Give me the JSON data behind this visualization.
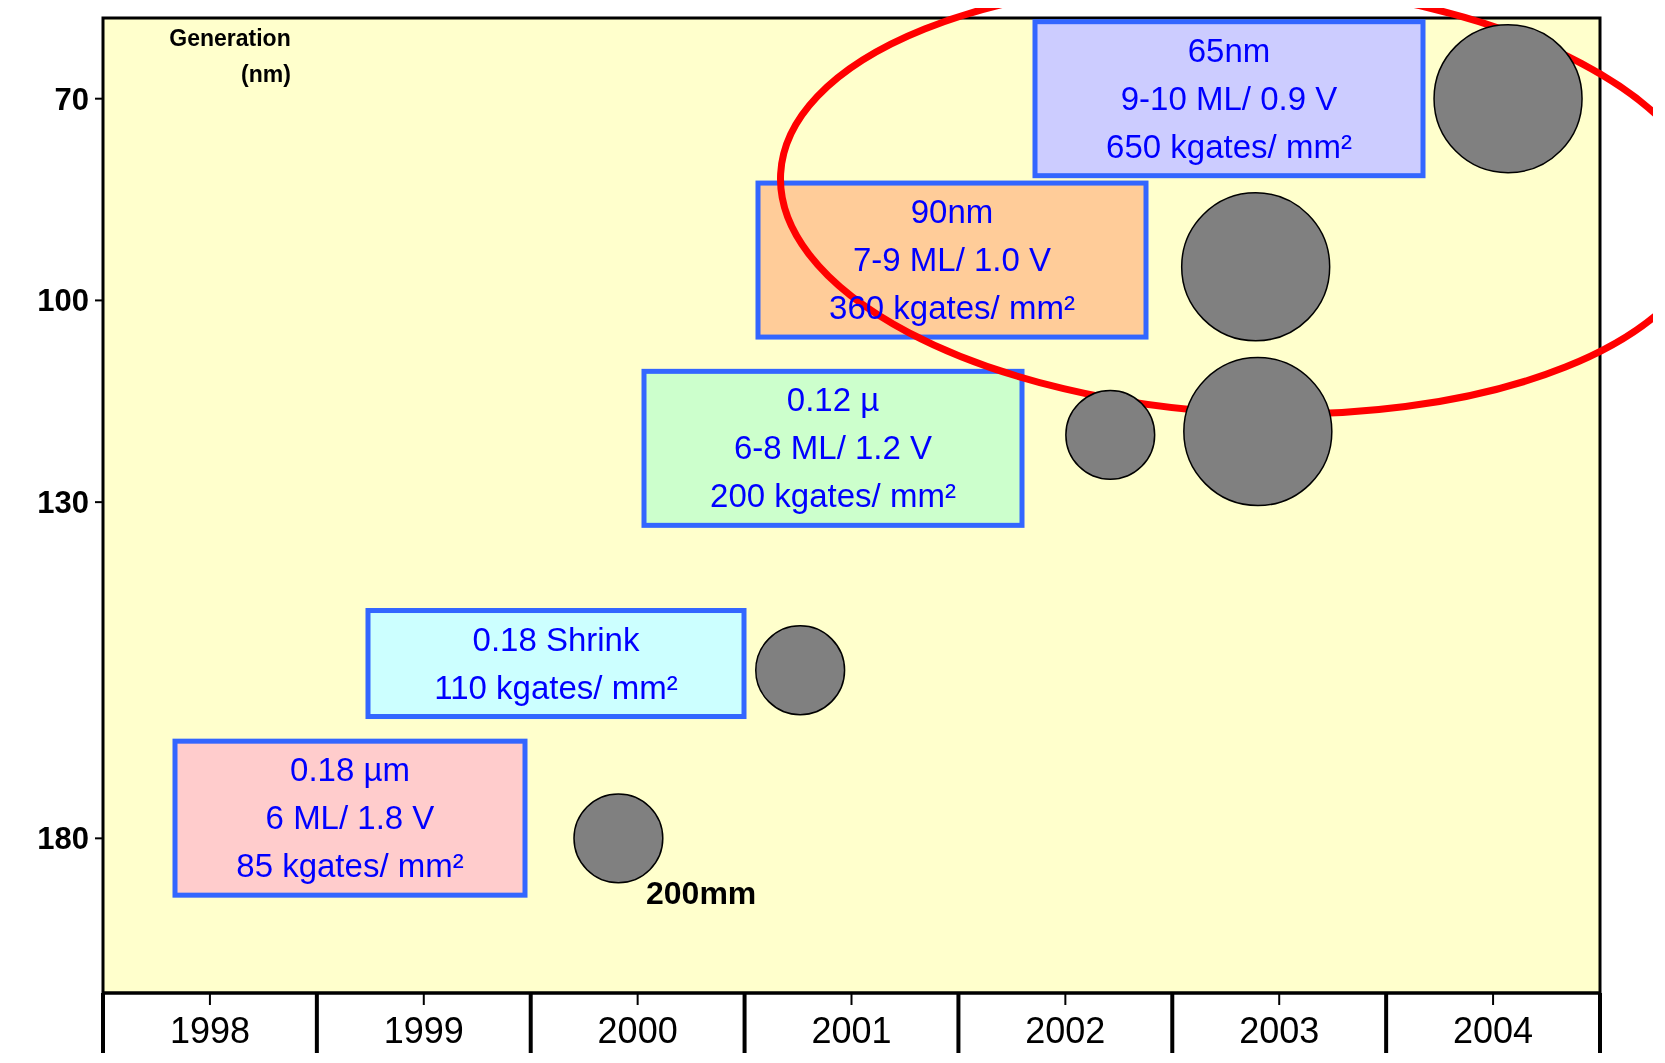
{
  "chart_data": {
    "type": "bubble",
    "ylabel": "Generation\n(nm)",
    "xlim": [
      1997.5,
      2004.5
    ],
    "xticks": [
      1998,
      1999,
      2000,
      2001,
      2002,
      2003,
      2004
    ],
    "ylim": [
      203,
      58
    ],
    "yticks": [
      70,
      100,
      130,
      180
    ],
    "series": [
      {
        "color": "#808080",
        "x": [
          1999.91,
          2000.76,
          2002.21,
          2002.9,
          2002.89,
          2004.07
        ],
        "values": [
          180,
          155,
          120,
          119.5,
          95,
          70
        ],
        "sizes": [
          0.36,
          0.36,
          0.36,
          1,
          1,
          1
        ]
      }
    ],
    "annotations": [
      "0.18 µm\n6 ML/ 1.8 V\n85 kgates/ mm²",
      "0.18 Shrink\n110 kgates/ mm²",
      "0.12 µ\n6-8 ML/ 1.2 V\n200 kgates/ mm²",
      "90nm\n7-9 ML/ 1.0 V\n360 kgates/ mm²",
      "65nm\n9-10 ML/ 0.9 V\n650 kgates/ mm²",
      "200mm"
    ]
  }
}
